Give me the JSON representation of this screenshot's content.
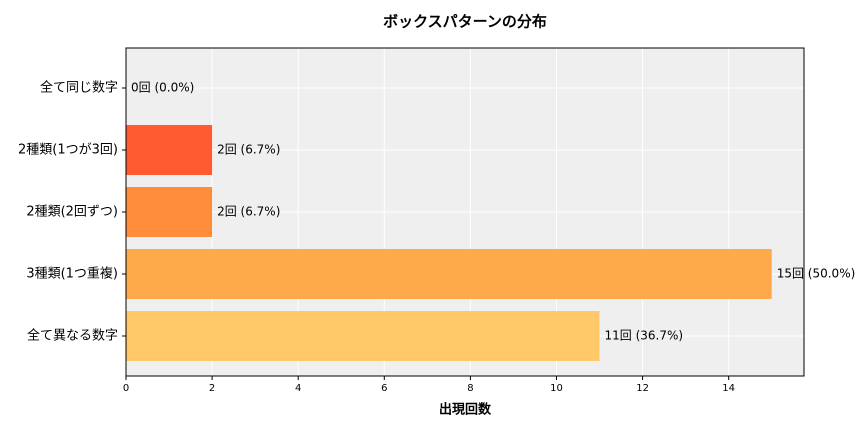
{
  "chart_data": {
    "type": "barh",
    "title": "ボックスパターンの分布",
    "xlabel": "出現回数",
    "categories": [
      "全て同じ数字",
      "2種類(1つが3回)",
      "2種類(2回ずつ)",
      "3種類(1つ重複)",
      "全て異なる数字"
    ],
    "values": [
      0,
      2,
      2,
      15,
      11
    ],
    "value_labels": [
      "0回 (0.0%)",
      "2回 (6.7%)",
      "2回 (6.7%)",
      "15回 (50.0%)",
      "11回 (36.7%)"
    ],
    "colors": [
      "#ff3b2f",
      "#ff5a30",
      "#ff8c3a",
      "#ffaa4a",
      "#ffc96a"
    ],
    "xlim": [
      0,
      15.75
    ],
    "xticks": [
      0,
      2,
      4,
      6,
      8,
      10,
      12,
      14
    ],
    "grid": true
  }
}
